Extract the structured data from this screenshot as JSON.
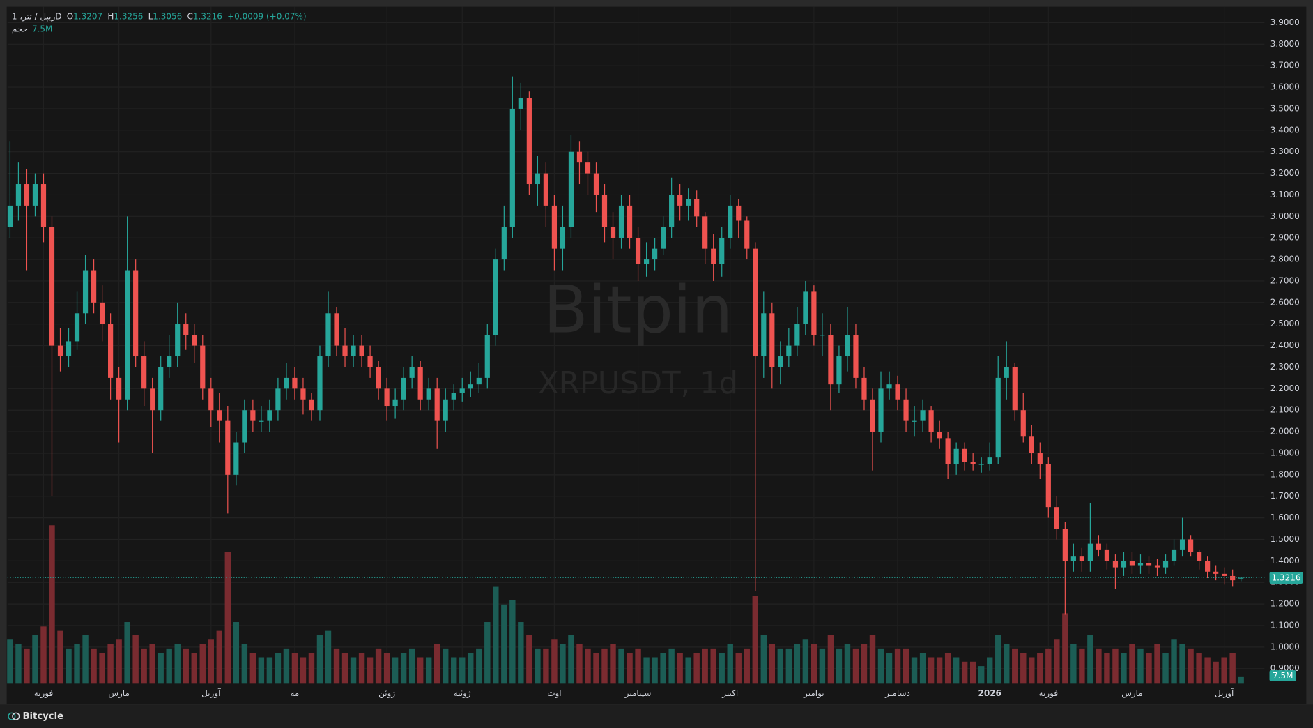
{
  "chart_data": {
    "type": "candlestick",
    "legend": {
      "symbol": "ریپل / تتر، 1D",
      "open_label": "O",
      "high_label": "H",
      "low_label": "L",
      "close_label": "C",
      "change": "+0.0009 (+0.07%)",
      "volume_label": "حجم"
    },
    "watermark": {
      "title": "Bitpin",
      "subtitle": "XRPUSDT, 1d"
    },
    "footer": "Bitcycle",
    "up_color": "#26a69a",
    "down_color": "#ef5350",
    "volume_up_color": "#1c5d55",
    "volume_down_color": "#7a2b30",
    "grid": true,
    "categories": [
      null,
      null,
      null,
      null,
      "فوریه",
      null,
      null,
      null,
      null,
      null,
      null,
      null,
      null,
      "مارس",
      null,
      null,
      null,
      null,
      null,
      null,
      null,
      null,
      null,
      null,
      "آوریل",
      null,
      null,
      null,
      null,
      null,
      null,
      null,
      null,
      null,
      "مه",
      null,
      null,
      null,
      null,
      null,
      null,
      null,
      null,
      null,
      null,
      "ژوئن",
      null,
      null,
      null,
      null,
      null,
      null,
      null,
      null,
      "ژوئیه",
      null,
      null,
      null,
      null,
      null,
      null,
      null,
      null,
      null,
      null,
      "اوت",
      null,
      null,
      null,
      null,
      null,
      null,
      null,
      null,
      null,
      "سپتامبر",
      null,
      null,
      null,
      null,
      null,
      null,
      null,
      null,
      null,
      null,
      "اکتبر",
      null,
      null,
      null,
      null,
      null,
      null,
      null,
      null,
      null,
      "نوامبر",
      null,
      null,
      null,
      null,
      null,
      null,
      null,
      null,
      null,
      "دسامبر",
      null,
      null,
      null,
      null,
      null,
      null,
      null,
      null,
      null,
      null,
      "2026",
      null,
      null,
      null,
      null,
      null,
      null,
      "فوریه",
      null,
      null,
      null,
      null,
      null,
      null,
      null,
      null,
      null,
      "مارس",
      null,
      null,
      null,
      null,
      null,
      null,
      null,
      null,
      null,
      null,
      "آوریل",
      null,
      null
    ],
    "open": [
      2.95,
      3.05,
      3.15,
      3.05,
      3.15,
      2.95,
      2.4,
      2.35,
      2.42,
      2.55,
      2.75,
      2.6,
      2.5,
      2.25,
      2.15,
      2.75,
      2.35,
      2.2,
      2.1,
      2.3,
      2.35,
      2.5,
      2.45,
      2.4,
      2.2,
      2.1,
      2.05,
      1.8,
      1.95,
      2.1,
      2.05,
      2.05,
      2.1,
      2.2,
      2.25,
      2.2,
      2.15,
      2.1,
      2.35,
      2.55,
      2.4,
      2.35,
      2.4,
      2.35,
      2.3,
      2.2,
      2.12,
      2.15,
      2.25,
      2.3,
      2.15,
      2.2,
      2.05,
      2.15,
      2.18,
      2.2,
      2.22,
      2.25,
      2.45,
      2.8,
      2.95,
      3.5,
      3.55,
      3.15,
      3.2,
      3.05,
      2.85,
      2.95,
      3.3,
      3.25,
      3.2,
      3.1,
      2.95,
      2.9,
      3.05,
      2.9,
      2.78,
      2.8,
      2.85,
      2.95,
      3.1,
      3.05,
      3.08,
      3.0,
      2.85,
      2.78,
      2.9,
      3.05,
      2.98,
      2.85,
      2.35,
      2.55,
      2.3,
      2.35,
      2.4,
      2.5,
      2.65,
      2.45,
      2.45,
      2.22,
      2.35,
      2.45,
      2.25,
      2.15,
      2.0,
      2.2,
      2.22,
      2.15,
      2.05,
      2.05,
      2.1,
      2.0,
      1.97,
      1.85,
      1.92,
      1.86,
      1.85,
      1.85,
      1.88,
      2.25,
      2.3,
      2.1,
      1.98,
      1.9,
      1.85,
      1.65,
      1.55,
      1.4,
      1.42,
      1.4,
      1.48,
      1.45,
      1.4,
      1.37,
      1.4,
      1.38,
      1.39,
      1.38,
      1.37,
      1.4,
      1.45,
      1.5,
      1.44,
      1.4,
      1.35,
      1.34,
      1.33,
      1.3207
    ],
    "high": [
      3.35,
      3.25,
      3.22,
      3.2,
      3.2,
      3.0,
      2.48,
      2.48,
      2.65,
      2.82,
      2.8,
      2.68,
      2.55,
      2.3,
      3.0,
      2.8,
      2.42,
      2.25,
      2.35,
      2.45,
      2.6,
      2.55,
      2.5,
      2.45,
      2.25,
      2.18,
      2.12,
      2.0,
      2.15,
      2.15,
      2.12,
      2.15,
      2.25,
      2.32,
      2.3,
      2.25,
      2.18,
      2.4,
      2.65,
      2.58,
      2.48,
      2.45,
      2.45,
      2.4,
      2.33,
      2.25,
      2.2,
      2.3,
      2.35,
      2.33,
      2.25,
      2.25,
      2.2,
      2.22,
      2.25,
      2.28,
      2.32,
      2.5,
      2.85,
      3.05,
      3.65,
      3.62,
      3.58,
      3.28,
      3.25,
      3.1,
      3.05,
      3.38,
      3.35,
      3.3,
      3.25,
      3.15,
      3.02,
      3.1,
      3.1,
      2.95,
      2.88,
      2.9,
      3.0,
      3.18,
      3.15,
      3.13,
      3.12,
      3.02,
      2.92,
      2.95,
      3.1,
      3.08,
      3.0,
      2.88,
      2.65,
      2.6,
      2.42,
      2.48,
      2.58,
      2.7,
      2.68,
      2.55,
      2.5,
      2.4,
      2.58,
      2.5,
      2.3,
      2.2,
      2.28,
      2.28,
      2.26,
      2.2,
      2.12,
      2.15,
      2.12,
      2.05,
      2.0,
      1.95,
      1.95,
      1.9,
      1.88,
      1.95,
      2.35,
      2.42,
      2.32,
      2.18,
      2.03,
      1.95,
      1.88,
      1.7,
      1.58,
      1.48,
      1.46,
      1.67,
      1.52,
      1.48,
      1.43,
      1.44,
      1.44,
      1.43,
      1.42,
      1.41,
      1.43,
      1.5,
      1.6,
      1.52,
      1.45,
      1.42,
      1.38,
      1.37,
      1.36,
      1.3256
    ],
    "low": [
      2.9,
      2.98,
      2.75,
      3.0,
      2.88,
      1.7,
      2.28,
      2.3,
      2.38,
      2.5,
      2.55,
      2.42,
      2.15,
      1.95,
      2.1,
      2.3,
      2.12,
      1.9,
      2.05,
      2.25,
      2.3,
      2.38,
      2.32,
      2.15,
      2.02,
      1.95,
      1.62,
      1.75,
      1.9,
      2.0,
      2.0,
      2.0,
      2.05,
      2.15,
      2.15,
      2.08,
      2.05,
      2.05,
      2.3,
      2.35,
      2.3,
      2.3,
      2.3,
      2.25,
      2.15,
      2.05,
      2.06,
      2.1,
      2.2,
      2.1,
      2.1,
      1.92,
      2.0,
      2.1,
      2.14,
      2.16,
      2.18,
      2.2,
      2.4,
      2.75,
      2.9,
      3.4,
      3.1,
      3.05,
      2.95,
      2.75,
      2.75,
      2.9,
      3.15,
      3.1,
      3.02,
      2.88,
      2.8,
      2.85,
      2.85,
      2.7,
      2.72,
      2.75,
      2.82,
      2.9,
      2.98,
      2.98,
      2.95,
      2.78,
      2.7,
      2.72,
      2.85,
      2.9,
      2.8,
      1.26,
      2.25,
      2.2,
      2.22,
      2.3,
      2.35,
      2.45,
      2.4,
      2.35,
      2.1,
      2.18,
      2.28,
      2.2,
      2.1,
      1.82,
      1.95,
      2.15,
      2.1,
      2.0,
      1.98,
      2.0,
      1.95,
      1.92,
      1.78,
      1.8,
      1.82,
      1.82,
      1.81,
      1.82,
      1.85,
      2.15,
      2.05,
      1.95,
      1.85,
      1.78,
      1.6,
      1.5,
      1.15,
      1.35,
      1.35,
      1.35,
      1.42,
      1.36,
      1.27,
      1.33,
      1.34,
      1.34,
      1.34,
      1.33,
      1.34,
      1.38,
      1.42,
      1.42,
      1.36,
      1.32,
      1.31,
      1.29,
      1.28,
      1.3056
    ],
    "close": [
      3.05,
      3.15,
      3.05,
      3.15,
      2.95,
      2.4,
      2.35,
      2.42,
      2.55,
      2.75,
      2.6,
      2.5,
      2.25,
      2.15,
      2.75,
      2.35,
      2.2,
      2.1,
      2.3,
      2.35,
      2.5,
      2.45,
      2.4,
      2.2,
      2.1,
      2.05,
      1.8,
      1.95,
      2.1,
      2.05,
      2.05,
      2.1,
      2.2,
      2.25,
      2.2,
      2.15,
      2.1,
      2.35,
      2.55,
      2.4,
      2.35,
      2.4,
      2.35,
      2.3,
      2.2,
      2.12,
      2.15,
      2.25,
      2.3,
      2.15,
      2.2,
      2.05,
      2.15,
      2.18,
      2.2,
      2.22,
      2.25,
      2.45,
      2.8,
      2.95,
      3.5,
      3.55,
      3.15,
      3.2,
      3.05,
      2.85,
      2.95,
      3.3,
      3.25,
      3.2,
      3.1,
      2.95,
      2.9,
      3.05,
      2.9,
      2.78,
      2.8,
      2.85,
      2.95,
      3.1,
      3.05,
      3.08,
      3.0,
      2.85,
      2.78,
      2.9,
      3.05,
      2.98,
      2.85,
      2.35,
      2.55,
      2.3,
      2.35,
      2.4,
      2.5,
      2.65,
      2.45,
      2.45,
      2.22,
      2.35,
      2.45,
      2.25,
      2.15,
      2.0,
      2.2,
      2.22,
      2.15,
      2.05,
      2.05,
      2.1,
      2.0,
      1.97,
      1.85,
      1.92,
      1.86,
      1.85,
      1.85,
      1.88,
      2.25,
      2.3,
      2.1,
      1.98,
      1.9,
      1.85,
      1.65,
      1.55,
      1.4,
      1.42,
      1.4,
      1.48,
      1.45,
      1.4,
      1.37,
      1.4,
      1.38,
      1.39,
      1.38,
      1.37,
      1.4,
      1.45,
      1.5,
      1.44,
      1.4,
      1.35,
      1.34,
      1.33,
      1.31,
      1.3216
    ],
    "volume": [
      50000000,
      45000000,
      40000000,
      55000000,
      65000000,
      180000000,
      60000000,
      40000000,
      45000000,
      55000000,
      40000000,
      35000000,
      45000000,
      50000000,
      70000000,
      55000000,
      40000000,
      45000000,
      35000000,
      40000000,
      45000000,
      40000000,
      35000000,
      45000000,
      50000000,
      60000000,
      150000000,
      70000000,
      45000000,
      35000000,
      30000000,
      30000000,
      35000000,
      40000000,
      35000000,
      30000000,
      35000000,
      55000000,
      60000000,
      40000000,
      35000000,
      30000000,
      35000000,
      30000000,
      40000000,
      35000000,
      30000000,
      35000000,
      40000000,
      30000000,
      30000000,
      45000000,
      40000000,
      30000000,
      30000000,
      35000000,
      40000000,
      70000000,
      110000000,
      90000000,
      95000000,
      70000000,
      55000000,
      40000000,
      40000000,
      50000000,
      45000000,
      55000000,
      45000000,
      40000000,
      35000000,
      40000000,
      45000000,
      40000000,
      35000000,
      40000000,
      30000000,
      30000000,
      35000000,
      40000000,
      35000000,
      30000000,
      35000000,
      40000000,
      40000000,
      35000000,
      45000000,
      35000000,
      40000000,
      100000000,
      55000000,
      45000000,
      40000000,
      40000000,
      45000000,
      50000000,
      45000000,
      40000000,
      55000000,
      40000000,
      45000000,
      40000000,
      45000000,
      55000000,
      40000000,
      35000000,
      40000000,
      40000000,
      30000000,
      35000000,
      30000000,
      30000000,
      35000000,
      30000000,
      25000000,
      25000000,
      20000000,
      30000000,
      55000000,
      45000000,
      40000000,
      35000000,
      30000000,
      35000000,
      40000000,
      50000000,
      80000000,
      45000000,
      40000000,
      55000000,
      40000000,
      35000000,
      40000000,
      35000000,
      45000000,
      40000000,
      35000000,
      45000000,
      35000000,
      50000000,
      45000000,
      40000000,
      35000000,
      30000000,
      25000000,
      30000000,
      35000000,
      7500000
    ],
    "last_volume_label": "7.5M",
    "ylim": [
      0.83,
      3.974
    ],
    "vlim": [
      0,
      200000000
    ],
    "yticks": [
      {
        "value": 0.9,
        "label": "0.9000"
      },
      {
        "value": 1.0,
        "label": "1.0000"
      },
      {
        "value": 1.1,
        "label": "1.1000"
      },
      {
        "value": 1.2,
        "label": "1.2000"
      },
      {
        "value": 1.3,
        "label": "1.3000"
      },
      {
        "value": 1.4,
        "label": "1.4000"
      },
      {
        "value": 1.5,
        "label": "1.5000"
      },
      {
        "value": 1.6,
        "label": "1.6000"
      },
      {
        "value": 1.7,
        "label": "1.7000"
      },
      {
        "value": 1.8,
        "label": "1.8000"
      },
      {
        "value": 1.9,
        "label": "1.9000"
      },
      {
        "value": 2.0,
        "label": "2.0000"
      },
      {
        "value": 2.1,
        "label": "2.1000"
      },
      {
        "value": 2.2,
        "label": "2.2000"
      },
      {
        "value": 2.3,
        "label": "2.3000"
      },
      {
        "value": 2.4,
        "label": "2.4000"
      },
      {
        "value": 2.5,
        "label": "2.5000"
      },
      {
        "value": 2.6,
        "label": "2.6000"
      },
      {
        "value": 2.7,
        "label": "2.7000"
      },
      {
        "value": 2.8,
        "label": "2.8000"
      },
      {
        "value": 2.9,
        "label": "2.9000"
      },
      {
        "value": 3.0,
        "label": "3.0000"
      },
      {
        "value": 3.1,
        "label": "3.1000"
      },
      {
        "value": 3.2,
        "label": "3.2000"
      },
      {
        "value": 3.3,
        "label": "3.3000"
      },
      {
        "value": 3.4,
        "label": "3.4000"
      },
      {
        "value": 3.5,
        "label": "3.5000"
      },
      {
        "value": 3.6,
        "label": "3.6000"
      },
      {
        "value": 3.7,
        "label": "3.7000"
      },
      {
        "value": 3.8,
        "label": "3.8000"
      },
      {
        "value": 3.9,
        "label": "3.9000"
      }
    ]
  }
}
